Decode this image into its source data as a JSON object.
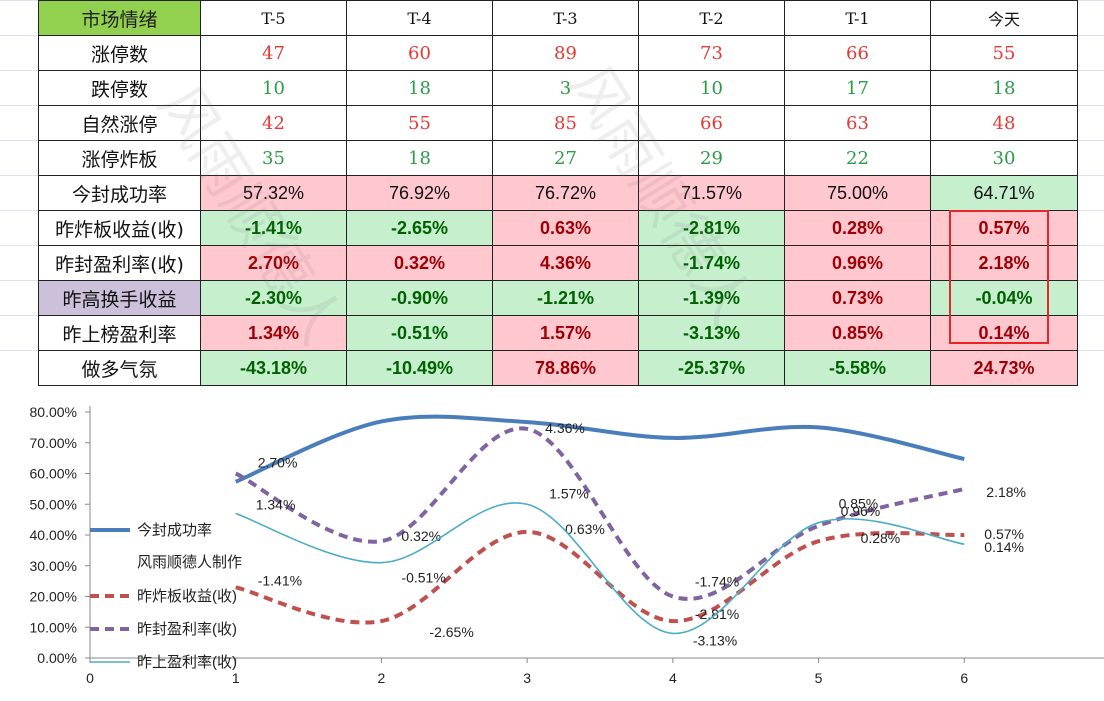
{
  "table": {
    "header": [
      "市场情绪",
      "T-5",
      "T-4",
      "T-3",
      "T-2",
      "T-1",
      "今天"
    ],
    "rows": [
      {
        "label": "涨停数",
        "cells": [
          "47",
          "60",
          "89",
          "73",
          "66",
          "55"
        ]
      },
      {
        "label": "跌停数",
        "cells": [
          "10",
          "18",
          "3",
          "10",
          "17",
          "18"
        ]
      },
      {
        "label": "自然涨停",
        "cells": [
          "42",
          "55",
          "85",
          "66",
          "63",
          "48"
        ]
      },
      {
        "label": "涨停炸板",
        "cells": [
          "35",
          "18",
          "27",
          "29",
          "22",
          "30"
        ]
      },
      {
        "label": "今封成功率",
        "cells": [
          "57.32%",
          "76.92%",
          "76.72%",
          "71.57%",
          "75.00%",
          "64.71%"
        ]
      },
      {
        "label": "昨炸板收益(收)",
        "cells": [
          "-1.41%",
          "-2.65%",
          "0.63%",
          "-2.81%",
          "0.28%",
          "0.57%"
        ]
      },
      {
        "label": "昨封盈利率(收)",
        "cells": [
          "2.70%",
          "0.32%",
          "4.36%",
          "-1.74%",
          "0.96%",
          "2.18%"
        ]
      },
      {
        "label": "昨高换手收益",
        "cells": [
          "-2.30%",
          "-0.90%",
          "-1.21%",
          "-1.39%",
          "0.73%",
          "-0.04%"
        ]
      },
      {
        "label": "昨上榜盈利率",
        "cells": [
          "1.34%",
          "-0.51%",
          "1.57%",
          "-3.13%",
          "0.85%",
          "0.14%"
        ]
      },
      {
        "label": "做多气氛",
        "cells": [
          "-43.18%",
          "-10.49%",
          "78.86%",
          "-25.37%",
          "-5.58%",
          "24.73%"
        ]
      }
    ]
  },
  "watermark": "风雨顺德人",
  "colors": {
    "header_green": "#92d050",
    "purple_label": "#ccc0da",
    "positive_bg": "#ffc7ce",
    "negative_bg": "#c6efce",
    "positive_text": "#9c0006",
    "negative_text": "#006100",
    "highlight_box": "#e5262b",
    "series_blue": "#4a7ebb",
    "series_red": "#c0504d",
    "series_purple": "#8064a2",
    "series_teal": "#4bacc6"
  },
  "chart_data": {
    "type": "line",
    "x": [
      1,
      2,
      3,
      4,
      5,
      6
    ],
    "xticks": [
      0,
      1,
      2,
      3,
      4,
      5,
      6
    ],
    "xlim": [
      0,
      7
    ],
    "ylim": [
      0,
      0.8
    ],
    "yticks": [
      "0.00%",
      "10.00%",
      "20.00%",
      "30.00%",
      "40.00%",
      "50.00%",
      "60.00%",
      "70.00%",
      "80.00%"
    ],
    "grid": false,
    "legend_position": "left",
    "legend_note": "风雨顺德人制作",
    "series": [
      {
        "name": "今封成功率",
        "values": [
          0.5732,
          0.7692,
          0.7672,
          0.7157,
          0.75,
          0.6471
        ],
        "style": "solid-thick",
        "color": "#4a7ebb",
        "labels": []
      },
      {
        "name": "昨炸板收益(收)",
        "values": [
          0.23,
          0.12,
          0.41,
          0.12,
          0.38,
          0.4
        ],
        "style": "dashed",
        "color": "#c0504d",
        "labels": [
          "-1.41%",
          "-2.65%",
          "0.63%",
          "-2.81%",
          "0.28%",
          "0.57%"
        ]
      },
      {
        "name": "昨封盈利率(收)",
        "values": [
          0.6,
          0.38,
          0.745,
          0.2,
          0.43,
          0.55
        ],
        "style": "dashed",
        "color": "#8064a2",
        "labels": [
          "2.70%",
          "0.32%",
          "4.36%",
          "-1.74%",
          "0.96%",
          "2.18%"
        ]
      },
      {
        "name": "昨上盈利率(收)",
        "values": [
          0.47,
          0.31,
          0.5,
          0.08,
          0.44,
          0.37
        ],
        "style": "solid-thin",
        "color": "#4bacc6",
        "labels": [
          "1.34%",
          "-0.51%",
          "1.57%",
          "-3.13%",
          "0.85%",
          "0.14%"
        ]
      }
    ]
  }
}
